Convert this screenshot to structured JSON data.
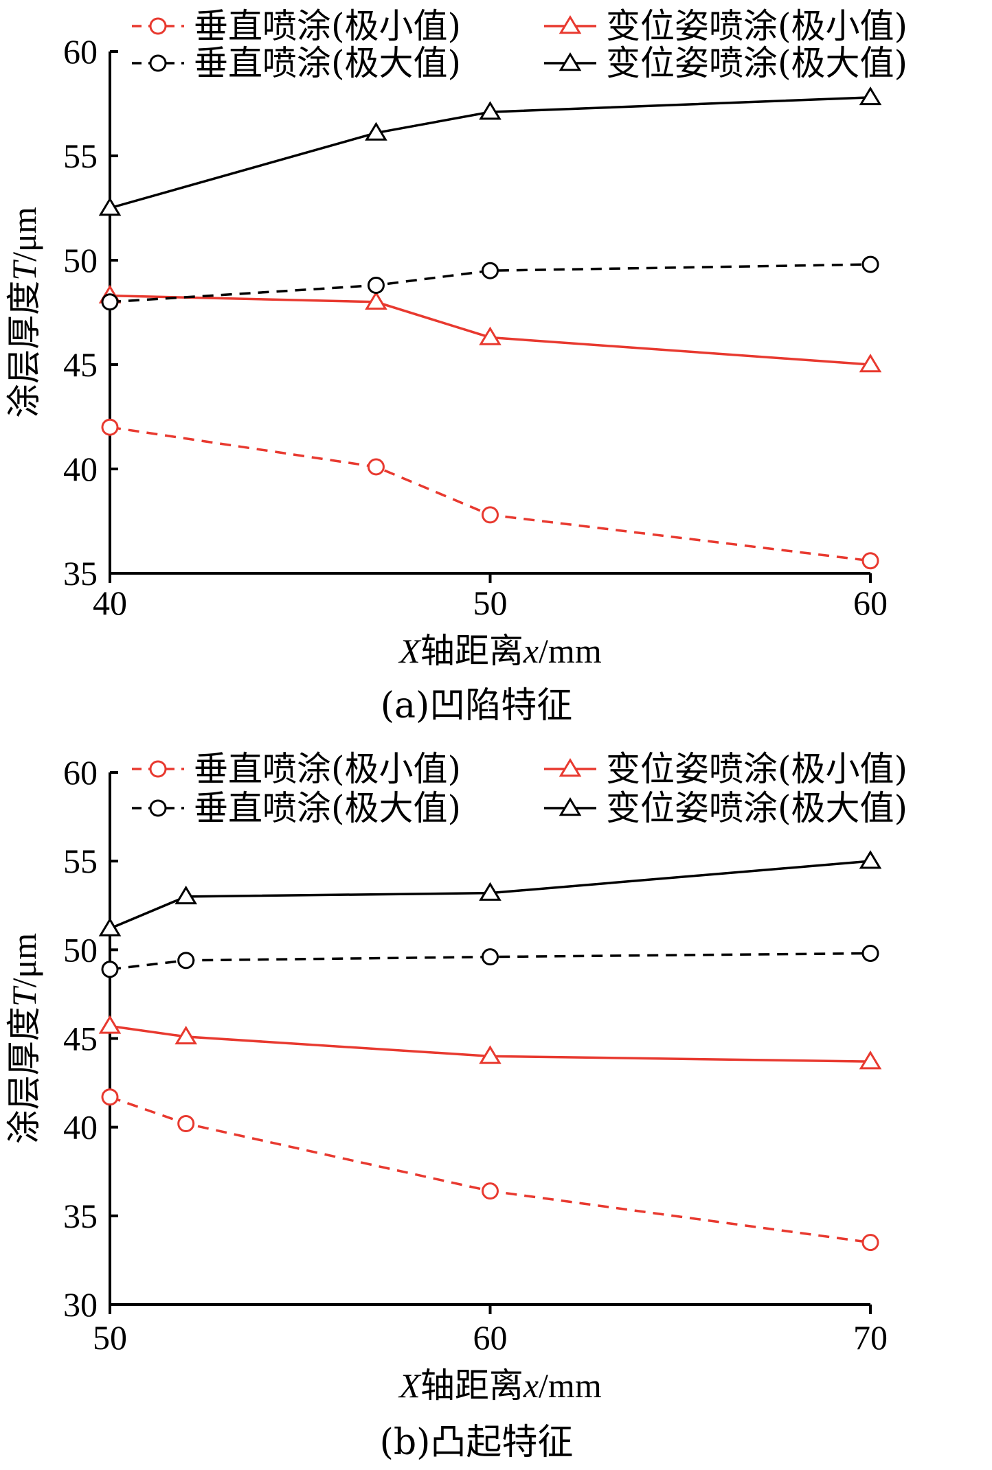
{
  "chart_data": [
    {
      "type": "line",
      "caption": "(a)凹陷特征",
      "xlabel_prefix": "X",
      "xlabel_rest": "轴距离",
      "xlabel_var": "x",
      "xlabel_unit": "/mm",
      "ylabel_rest": "涂层厚度",
      "ylabel_var": "T",
      "ylabel_unit": "/μm",
      "xlim": [
        40,
        60
      ],
      "ylim": [
        35,
        60
      ],
      "xticks": [
        40,
        50,
        60
      ],
      "yticks": [
        35,
        40,
        45,
        50,
        55,
        60
      ],
      "series": [
        {
          "name": "垂直喷涂(极小值)",
          "color": "#e8392f",
          "dash": true,
          "marker": "circle",
          "x": [
            40,
            47,
            50,
            60
          ],
          "values": [
            42.0,
            40.1,
            37.8,
            35.6
          ]
        },
        {
          "name": "变位姿喷涂(极小值)",
          "color": "#e8392f",
          "dash": false,
          "marker": "triangle",
          "x": [
            40,
            47,
            50,
            60
          ],
          "values": [
            48.3,
            48.0,
            46.3,
            45.0
          ]
        },
        {
          "name": "垂直喷涂(极大值)",
          "color": "#000000",
          "dash": true,
          "marker": "circle",
          "x": [
            40,
            47,
            50,
            60
          ],
          "values": [
            48.0,
            48.8,
            49.5,
            49.8
          ]
        },
        {
          "name": "变位姿喷涂(极大值)",
          "color": "#000000",
          "dash": false,
          "marker": "triangle",
          "x": [
            40,
            47,
            50,
            60
          ],
          "values": [
            52.5,
            56.1,
            57.1,
            57.8
          ]
        }
      ]
    },
    {
      "type": "line",
      "caption": "(b)凸起特征",
      "xlabel_prefix": "X",
      "xlabel_rest": "轴距离",
      "xlabel_var": "x",
      "xlabel_unit": "/mm",
      "ylabel_rest": "涂层厚度",
      "ylabel_var": "T",
      "ylabel_unit": "/μm",
      "xlim": [
        50,
        70
      ],
      "ylim": [
        30,
        60
      ],
      "xticks": [
        50,
        60,
        70
      ],
      "yticks": [
        30,
        35,
        40,
        45,
        50,
        55,
        60
      ],
      "series": [
        {
          "name": "垂直喷涂(极小值)",
          "color": "#e8392f",
          "dash": true,
          "marker": "circle",
          "x": [
            50,
            52,
            60,
            70
          ],
          "values": [
            41.7,
            40.2,
            36.4,
            33.5
          ]
        },
        {
          "name": "变位姿喷涂(极小值)",
          "color": "#e8392f",
          "dash": false,
          "marker": "triangle",
          "x": [
            50,
            52,
            60,
            70
          ],
          "values": [
            45.7,
            45.1,
            44.0,
            43.7
          ]
        },
        {
          "name": "垂直喷涂(极大值)",
          "color": "#000000",
          "dash": true,
          "marker": "circle",
          "x": [
            50,
            52,
            60,
            70
          ],
          "values": [
            48.9,
            49.4,
            49.6,
            49.8
          ]
        },
        {
          "name": "变位姿喷涂(极大值)",
          "color": "#000000",
          "dash": false,
          "marker": "triangle",
          "x": [
            50,
            52,
            60,
            70
          ],
          "values": [
            51.2,
            53.0,
            53.2,
            55.0
          ]
        }
      ]
    }
  ]
}
